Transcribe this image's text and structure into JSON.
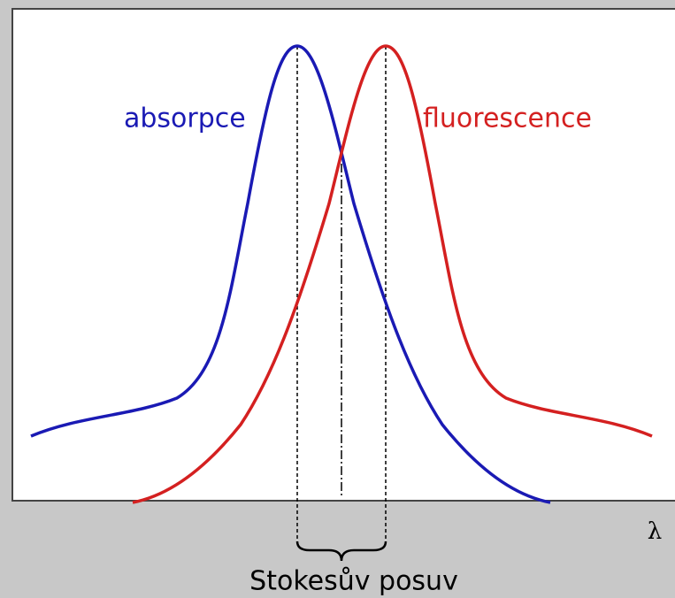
{
  "labels": {
    "absorption": "absorpce",
    "fluorescence": "fluorescence",
    "axis": "λ",
    "shift": "Stokesův posuv"
  }
}
